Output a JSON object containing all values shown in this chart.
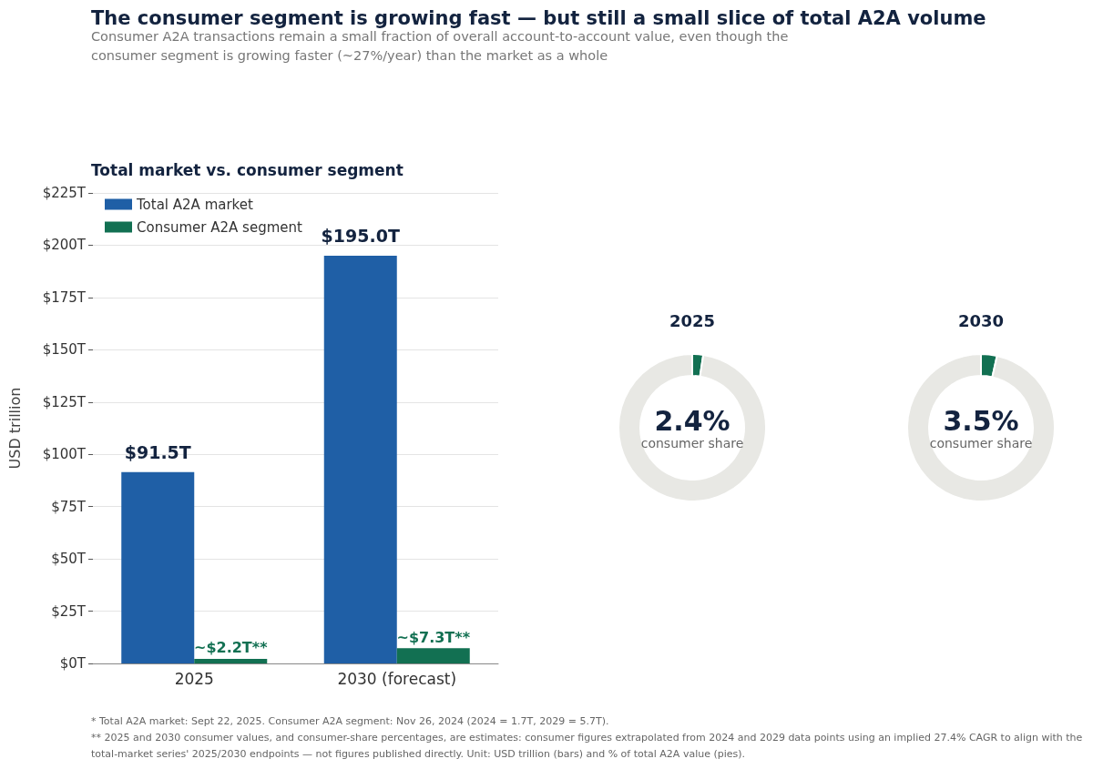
{
  "chart_data": [
    {
      "type": "bar",
      "title": "The consumer segment is growing fast — but still a small slice of total A2A volume",
      "subtitle": "Consumer A2A transactions remain a small fraction of overall account-to-account value, even though the consumer segment is growing faster (~27%/year) than the market as a whole",
      "annotations": [
        "Total market vs. consumer segment",
        "* Total A2A market: Sept 22, 2025. Consumer A2A segment: Nov 26, 2024 (2024 = 1.7T, 2029 = 5.7T).",
        "** 2025 and 2030 consumer values, and consumer-share percentages, are estimates: consumer figures extrapolated from 2024 and 2029 data points using an implied 27.4% CAGR to align with the total-market series' 2025/2030 endpoints — not figures published directly. Unit: USD trillion (bars) and % of total A2A value (pies)."
      ],
      "ylabel": "USD trillion",
      "categories": [
        "2025",
        "2030 (forecast)"
      ],
      "series": [
        {
          "name": "Total A2A market",
          "color": "#1f5fa6",
          "values": [
            91.5,
            195.0
          ],
          "value_labels": [
            "$91.5T",
            "$195.0T"
          ]
        },
        {
          "name": "Consumer A2A segment",
          "color": "#127052",
          "values": [
            2.2,
            7.3
          ],
          "value_labels": [
            "~$2.2T**",
            "~$7.3T**"
          ]
        }
      ],
      "ylim": [
        0,
        225
      ],
      "yticks": [
        {
          "value": 0,
          "label": "$0T"
        },
        {
          "value": 25,
          "label": "$25T"
        },
        {
          "value": 50,
          "label": "$50T"
        },
        {
          "value": 75,
          "label": "$75T"
        },
        {
          "value": 100,
          "label": "$100T"
        },
        {
          "value": 125,
          "label": "$125T"
        },
        {
          "value": 150,
          "label": "$150T"
        },
        {
          "value": 175,
          "label": "$175T"
        },
        {
          "value": 200,
          "label": "$200T"
        },
        {
          "value": 225,
          "label": "$225T"
        }
      ],
      "grid": "y",
      "legend": "top left"
    },
    {
      "type": "donut",
      "title": "2025",
      "categories": [
        "consumer share",
        null
      ],
      "values": [
        2.4,
        97.6
      ],
      "colors": [
        "#127052",
        "#e8e8e4"
      ],
      "value_labels": [
        "2.4%",
        null
      ]
    },
    {
      "type": "donut",
      "title": "2030",
      "categories": [
        "consumer share",
        null
      ],
      "values": [
        3.5,
        96.5
      ],
      "colors": [
        "#127052",
        "#e8e8e4"
      ],
      "value_labels": [
        "3.5%",
        null
      ]
    }
  ]
}
